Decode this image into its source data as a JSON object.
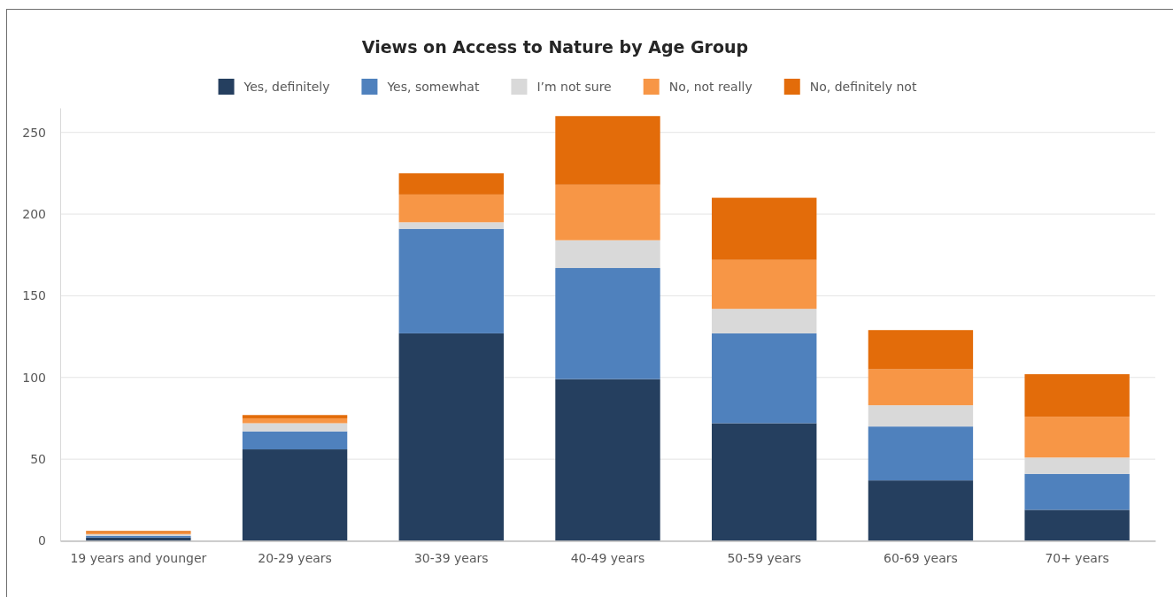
{
  "chart_data": {
    "type": "bar",
    "title": "Views on Access to Nature by Age Group",
    "categories": [
      "19 years and younger",
      "20-29 years",
      "30-39 years",
      "40-49 years",
      "50-59 years",
      "60-69 years",
      "70+ years"
    ],
    "series": [
      {
        "name": "Yes, definitely",
        "color": "#253f5f",
        "values": [
          2,
          56,
          127,
          99,
          72,
          37,
          19
        ]
      },
      {
        "name": "Yes, somewhat",
        "color": "#4f81bd",
        "values": [
          1,
          11,
          64,
          68,
          55,
          33,
          22
        ]
      },
      {
        "name": "I’m not sure",
        "color": "#d9d9d9",
        "values": [
          1,
          5,
          4,
          17,
          15,
          13,
          10
        ]
      },
      {
        "name": "No, not really",
        "color": "#f79646",
        "values": [
          1,
          3,
          17,
          34,
          30,
          22,
          25
        ]
      },
      {
        "name": "No, definitely not",
        "color": "#e36c0a",
        "values": [
          1,
          2,
          13,
          42,
          38,
          24,
          26
        ]
      }
    ],
    "stacked": true,
    "ylim": [
      0,
      265
    ],
    "yticks": [
      0,
      50,
      100,
      150,
      200,
      250
    ],
    "grid": "y",
    "legend": "top"
  }
}
